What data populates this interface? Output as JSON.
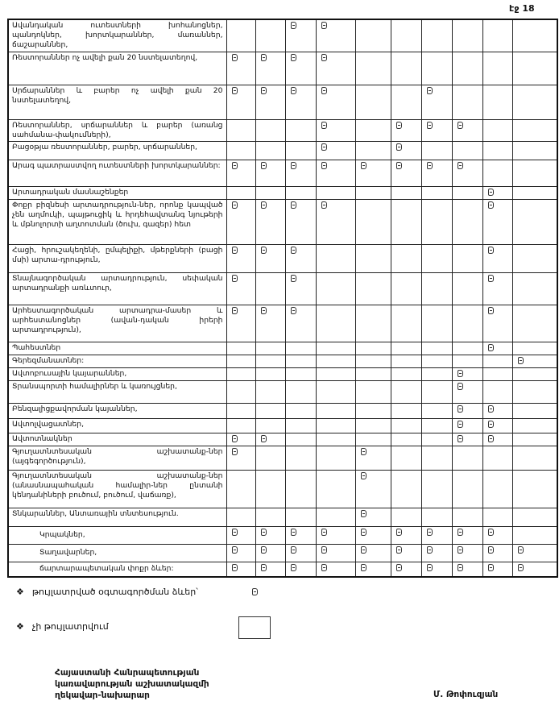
{
  "page_number": "էջ 18",
  "mark_icon": "checkbox-mark",
  "table": {
    "rows": [
      {
        "label": "Ավանդական ուտեստների խոհանոցներ, պանդոկներ, խորտկարաններ, մառաններ, ճաշարաններ,",
        "marks": [
          0,
          0,
          1,
          1,
          0,
          0,
          0,
          0,
          0,
          0
        ]
      },
      {
        "label": "Ռեստորաններ ոչ ավելի քան 20 նստելատեղով,",
        "marks": [
          1,
          1,
          1,
          1,
          0,
          0,
          0,
          0,
          0,
          0
        ]
      },
      {
        "label": "Սրճարաններ և բարեր ոչ ավելի քան 20 նստելատեղով,",
        "marks": [
          1,
          1,
          1,
          1,
          0,
          0,
          1,
          0,
          0,
          0
        ]
      },
      {
        "label": "Ռեստորաններ, սրճարաններ և բարեր (առանց սահմանա-փակումների),",
        "marks": [
          0,
          0,
          0,
          1,
          0,
          1,
          1,
          1,
          0,
          0
        ]
      },
      {
        "label": "Բացօթյա ռեստորաններ, բարեր, սրճարաններ,",
        "marks": [
          0,
          0,
          0,
          1,
          0,
          1,
          0,
          0,
          0,
          0
        ]
      },
      {
        "label": "Արագ պատրաստվող ուտեստների խորտկարաններ:",
        "marks": [
          1,
          1,
          1,
          1,
          1,
          1,
          1,
          1,
          0,
          0
        ]
      },
      {
        "label": "Արտադրական մասնաշենքեր",
        "marks": [
          0,
          0,
          0,
          0,
          0,
          0,
          0,
          0,
          1,
          0
        ]
      },
      {
        "label": "Փոքր բիզնեսի արտադրություն-ներ, որոնք կապված չեն աղմուկի, պայթուցիկ և հրդեհավտանգ նյութերի և մթնոլորտի աղտոտման (ծուխ, գազեր) հետ",
        "marks": [
          1,
          1,
          1,
          1,
          0,
          0,
          0,
          0,
          1,
          0
        ]
      },
      {
        "label": "Հացի, հրուշակեղենի, ըմպելիքի, մթերքների (բացի մսի) արտա-դրություն,",
        "marks": [
          1,
          1,
          1,
          0,
          0,
          0,
          0,
          0,
          1,
          0
        ]
      },
      {
        "label": "Տնայնագործական արտադրություն, սեփական արտադրանքի առևտուր,",
        "marks": [
          1,
          0,
          1,
          0,
          0,
          0,
          0,
          0,
          1,
          0
        ]
      },
      {
        "label": "Արհեստագործական արտադրա-մասեր և արհեստանոցներ (ավան-դական իրերի արտադրություն),",
        "marks": [
          1,
          1,
          1,
          0,
          0,
          0,
          0,
          0,
          1,
          0
        ]
      },
      {
        "label": "Պահեստներ",
        "marks": [
          0,
          0,
          0,
          0,
          0,
          0,
          0,
          0,
          1,
          0
        ]
      },
      {
        "label": "Գերեզմանատներ:",
        "marks": [
          0,
          0,
          0,
          0,
          0,
          0,
          0,
          0,
          0,
          1
        ]
      },
      {
        "label": "Ավտոբուսային կայարաններ,",
        "marks": [
          0,
          0,
          0,
          0,
          0,
          0,
          0,
          1,
          0,
          0
        ]
      },
      {
        "label": "Տրանսպորտի համալիրներ և կառույցներ,",
        "marks": [
          0,
          0,
          0,
          0,
          0,
          0,
          0,
          1,
          0,
          0
        ]
      },
      {
        "label": "Բենզալիցքավորման կայաններ,",
        "marks": [
          0,
          0,
          0,
          0,
          0,
          0,
          0,
          1,
          1,
          0
        ]
      },
      {
        "label": "Ավտոլվացատներ,",
        "marks": [
          0,
          0,
          0,
          0,
          0,
          0,
          0,
          1,
          1,
          0
        ]
      },
      {
        "label": "Ավտոտնակներ",
        "marks": [
          1,
          1,
          0,
          0,
          0,
          0,
          0,
          1,
          1,
          0
        ]
      },
      {
        "label": "Գյուղատնտեսական աշխատանք-ներ (այգեգործություն),",
        "marks": [
          1,
          0,
          0,
          0,
          1,
          0,
          0,
          0,
          0,
          0
        ]
      },
      {
        "label": "Գյուղատնտեսական աշխատանք-ներ (անասնապահական համալիր-ներ ընտանի կենդանիների բուծում, բուծում, վաճառք),",
        "marks": [
          0,
          0,
          0,
          0,
          1,
          0,
          0,
          0,
          0,
          0
        ]
      },
      {
        "label": "Տնկարաններ, Անտառային տնտեսություն.",
        "marks": [
          0,
          0,
          0,
          0,
          1,
          0,
          0,
          0,
          0,
          0
        ]
      },
      {
        "label": "Կրպակներ,",
        "marks": [
          1,
          1,
          1,
          1,
          1,
          1,
          1,
          1,
          1,
          0
        ],
        "indent": true
      },
      {
        "label": "Տաղավարներ,",
        "marks": [
          1,
          1,
          1,
          1,
          1,
          1,
          1,
          1,
          1,
          1
        ],
        "indent": true
      },
      {
        "label": "ճարտարապետական փոքր ձևեր:",
        "marks": [
          1,
          1,
          1,
          1,
          1,
          1,
          1,
          1,
          1,
          1
        ],
        "indent": true
      }
    ]
  },
  "legend": {
    "allowed": "թույլատրված օգտագործման ձևեր՝",
    "not_allowed": "չի թույլատրվում"
  },
  "signature": {
    "line1": "Հայաստանի Հանրապետության",
    "line2": "կառավարության աշխատակազմի",
    "line3": "ղեկավար-նախարար",
    "name": "Մ. Թոփուզյան"
  }
}
